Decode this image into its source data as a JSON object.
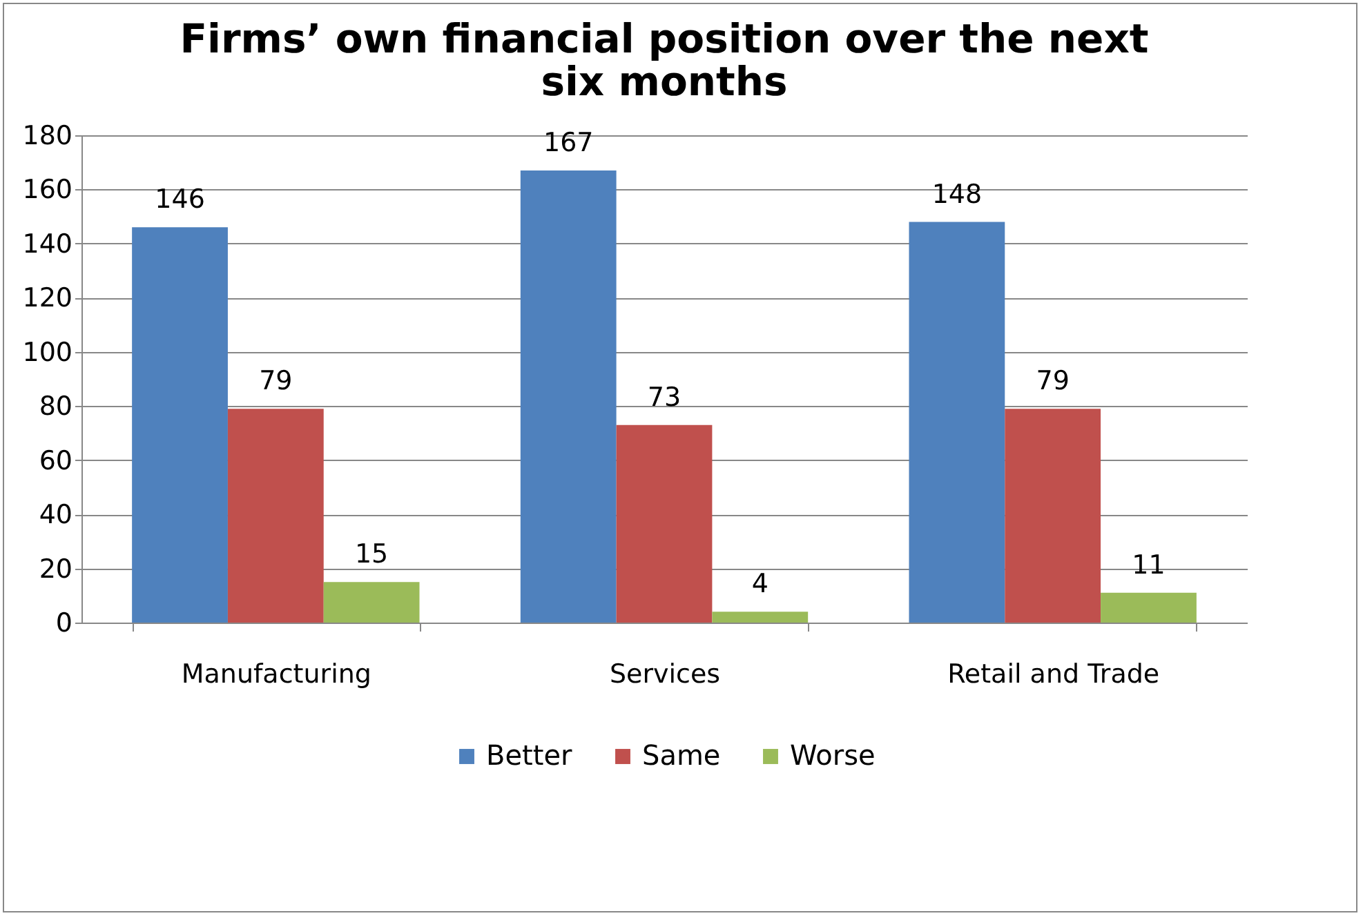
{
  "chart_data": {
    "type": "bar",
    "title": "Firms’ own financial position over the next six months",
    "categories": [
      "Manufacturing",
      "Services",
      "Retail and Trade"
    ],
    "series": [
      {
        "name": "Better",
        "color": "#4f81bd",
        "values": [
          146,
          167,
          148
        ]
      },
      {
        "name": "Same",
        "color": "#c0504d",
        "values": [
          79,
          73,
          79
        ]
      },
      {
        "name": "Worse",
        "color": "#9bbb59",
        "values": [
          15,
          4,
          11
        ]
      }
    ],
    "ylim": [
      0,
      180
    ],
    "yticks": [
      0,
      20,
      40,
      60,
      80,
      100,
      120,
      140,
      160,
      180
    ],
    "grid": "y",
    "legend": "bottom",
    "data_labels": true
  }
}
